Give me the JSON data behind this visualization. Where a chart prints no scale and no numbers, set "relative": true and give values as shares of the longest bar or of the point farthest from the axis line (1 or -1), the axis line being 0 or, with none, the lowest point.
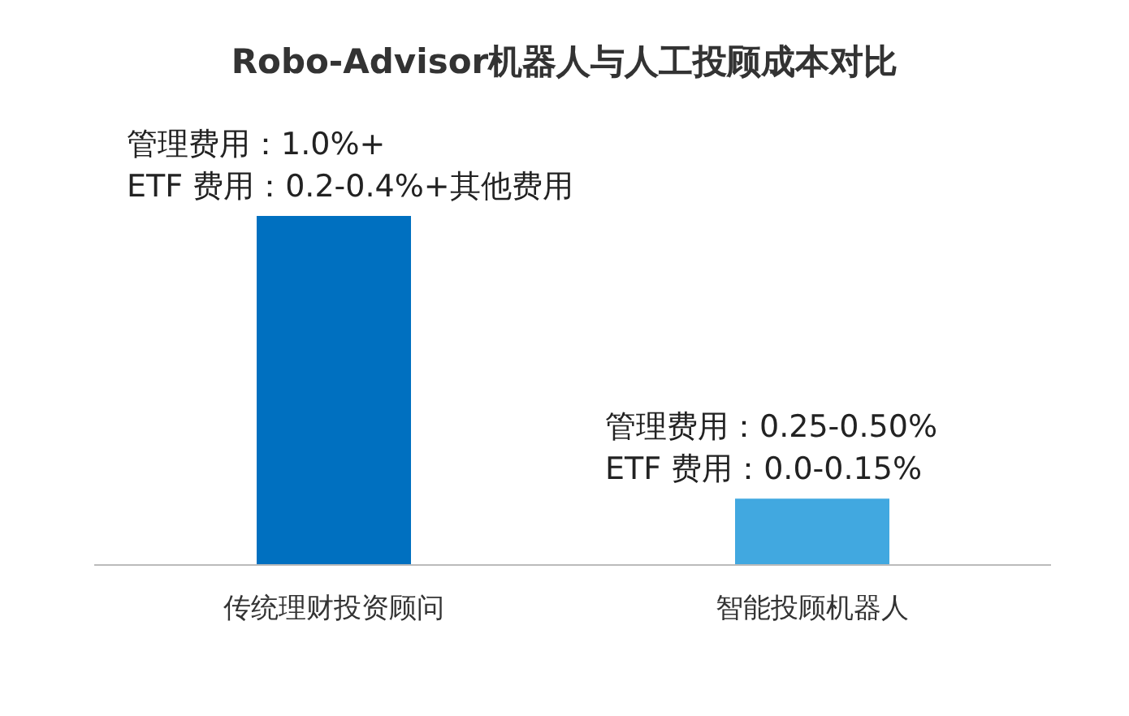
{
  "chart_data": {
    "type": "bar",
    "title": "Robo-Advisor机器人与人工投顾成本对比",
    "categories": [
      "传统理财投资顾问",
      "智能投顾机器人"
    ],
    "relative": true,
    "values": [
      1,
      0.19
    ],
    "colors": [
      "#0070c0",
      "#41a8e0"
    ],
    "annotations": [
      {
        "text": "管理费用：1.0%+",
        "x": "传统理财投资顾问",
        "y": 1
      },
      {
        "text": "ETF 费用：0.2-0.4%+其他费用",
        "x": "传统理财投资顾问",
        "y": 1
      },
      {
        "text": "管理费用：0.25-0.50%",
        "x": "智能投顾机器人",
        "y": 0.19
      },
      {
        "text": "ETF 费用：0.0-0.15%",
        "x": "智能投顾机器人",
        "y": 0.19
      }
    ]
  }
}
